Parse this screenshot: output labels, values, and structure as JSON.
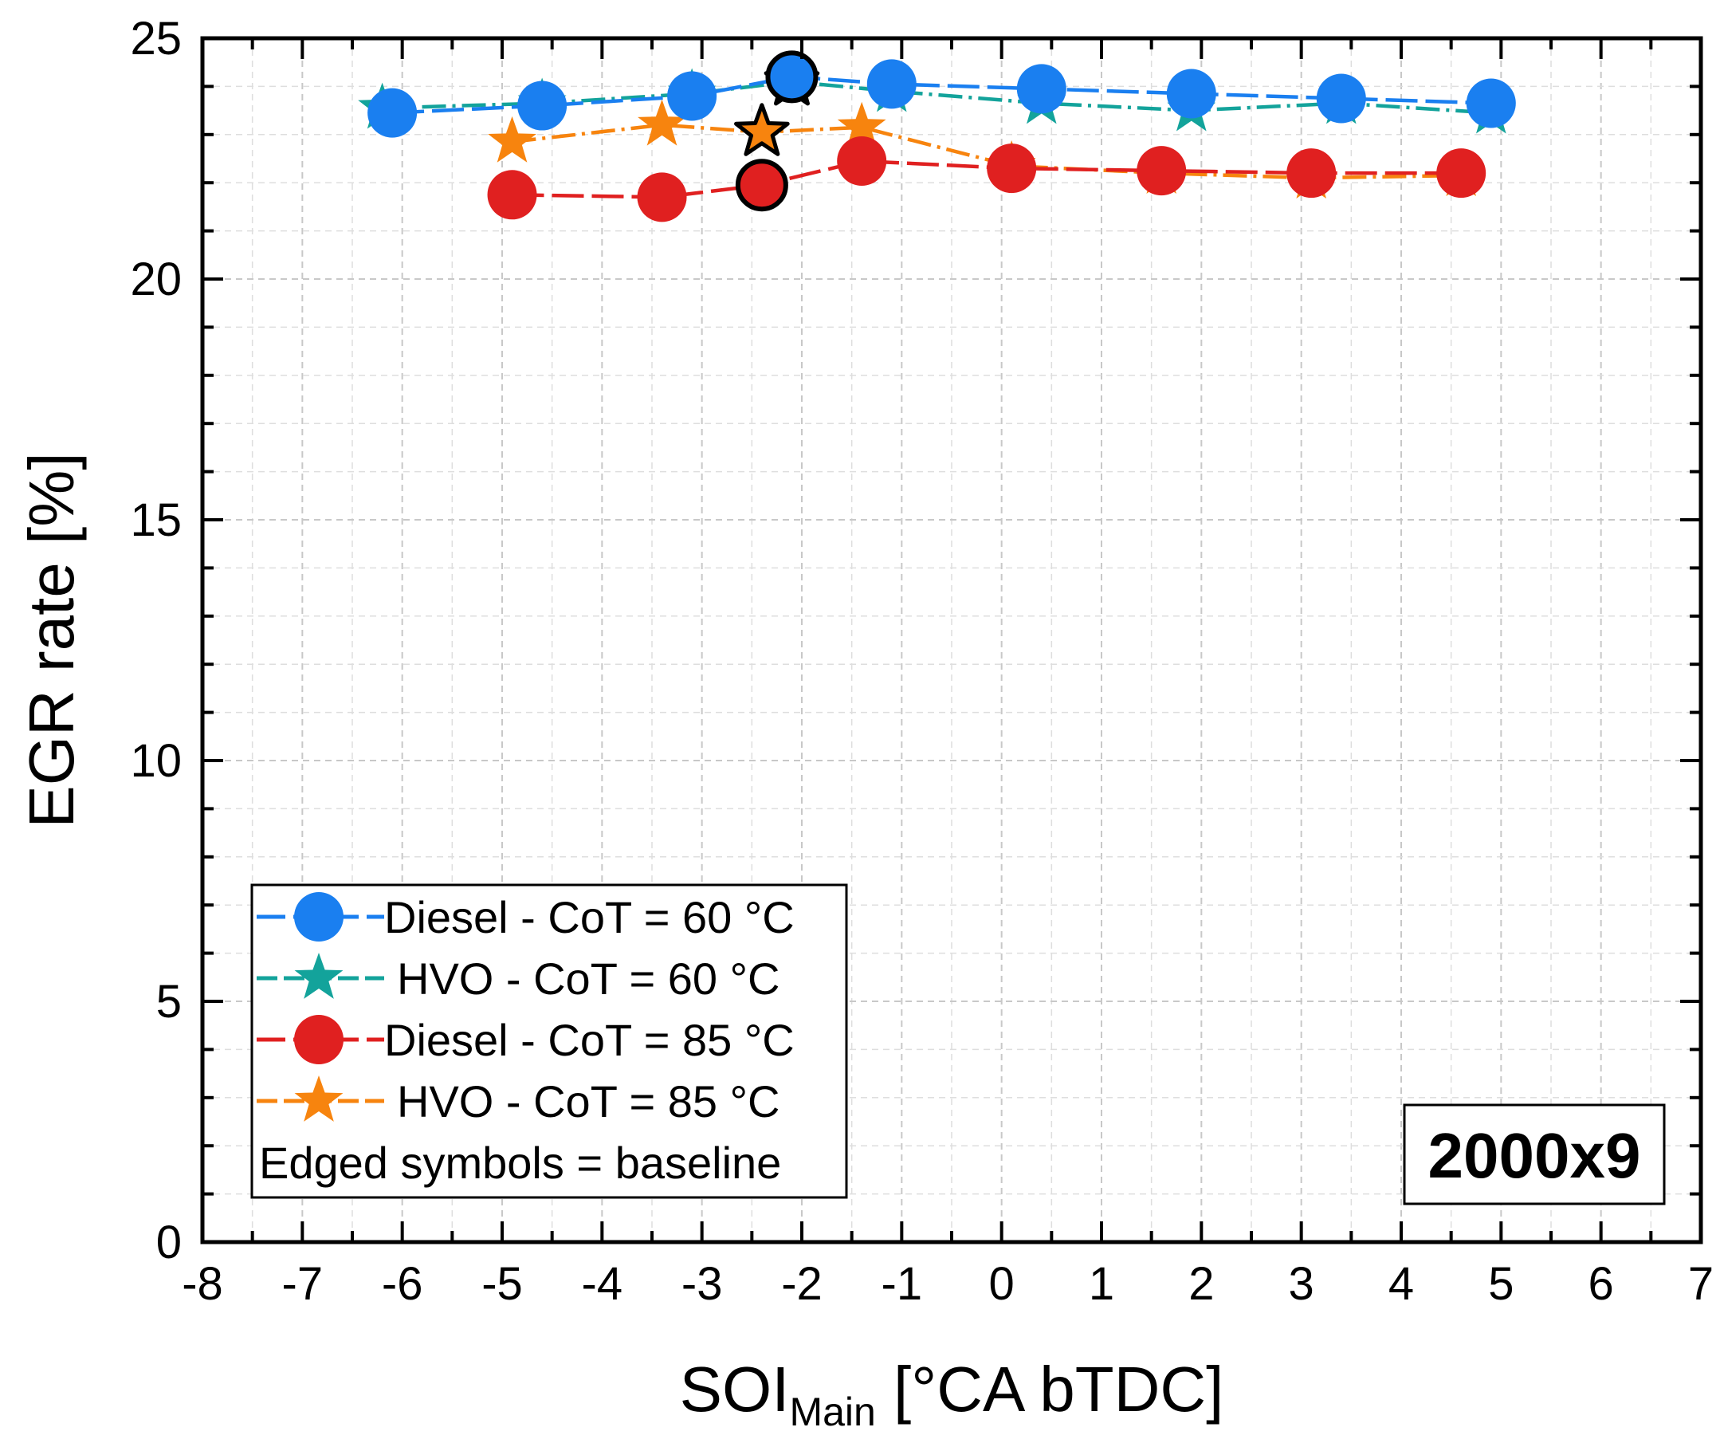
{
  "chart_data": {
    "type": "line",
    "xlabel": {
      "main": "SOI",
      "sub": "Main",
      "unit": " [°CA bTDC]"
    },
    "ylabel": "EGR rate [%]",
    "xlim": [
      -8,
      7
    ],
    "ylim": [
      0,
      25
    ],
    "xticks": [
      -8,
      -7,
      -6,
      -5,
      -4,
      -3,
      -2,
      -1,
      0,
      1,
      2,
      3,
      4,
      5,
      6,
      7
    ],
    "yticks": [
      0,
      5,
      10,
      15,
      20,
      25
    ],
    "grid": true,
    "legend_position": "bottom-left",
    "annotation": "2000x9",
    "legend_note": "Edged symbols = baseline",
    "series": [
      {
        "name": "Diesel - CoT = 60 °C",
        "marker": "circle",
        "color": "#1a7ff0",
        "points": [
          [
            -6.1,
            23.45
          ],
          [
            -4.6,
            23.6
          ],
          [
            -3.1,
            23.8
          ],
          [
            -2.1,
            24.2
          ],
          [
            -1.1,
            24.05
          ],
          [
            0.4,
            23.95
          ],
          [
            1.9,
            23.85
          ],
          [
            3.4,
            23.75
          ],
          [
            4.9,
            23.65
          ]
        ],
        "baseline_index": 3
      },
      {
        "name": "HVO - CoT = 60 °C",
        "marker": "star",
        "color": "#13a39b",
        "points": [
          [
            -6.2,
            23.55
          ],
          [
            -4.6,
            23.65
          ],
          [
            -3.1,
            23.85
          ],
          [
            -2.1,
            24.1
          ],
          [
            -1.1,
            23.9
          ],
          [
            0.4,
            23.65
          ],
          [
            1.9,
            23.5
          ],
          [
            3.4,
            23.65
          ],
          [
            4.9,
            23.45
          ]
        ],
        "baseline_index": 3
      },
      {
        "name": "Diesel - CoT = 85 °C",
        "marker": "circle",
        "color": "#e02020",
        "points": [
          [
            -4.9,
            21.75
          ],
          [
            -3.4,
            21.7
          ],
          [
            -2.4,
            21.95
          ],
          [
            -1.4,
            22.45
          ],
          [
            0.1,
            22.3
          ],
          [
            1.6,
            22.25
          ],
          [
            3.1,
            22.2
          ],
          [
            4.6,
            22.2
          ]
        ],
        "baseline_index": 2
      },
      {
        "name": "HVO - CoT = 85 °C",
        "marker": "star",
        "color": "#f7840e",
        "points": [
          [
            -4.9,
            22.85
          ],
          [
            -3.4,
            23.2
          ],
          [
            -2.4,
            23.05
          ],
          [
            -1.4,
            23.15
          ],
          [
            0.1,
            22.35
          ],
          [
            1.6,
            22.2
          ],
          [
            3.1,
            22.1
          ],
          [
            4.6,
            22.15
          ]
        ],
        "baseline_index": 2
      }
    ]
  }
}
